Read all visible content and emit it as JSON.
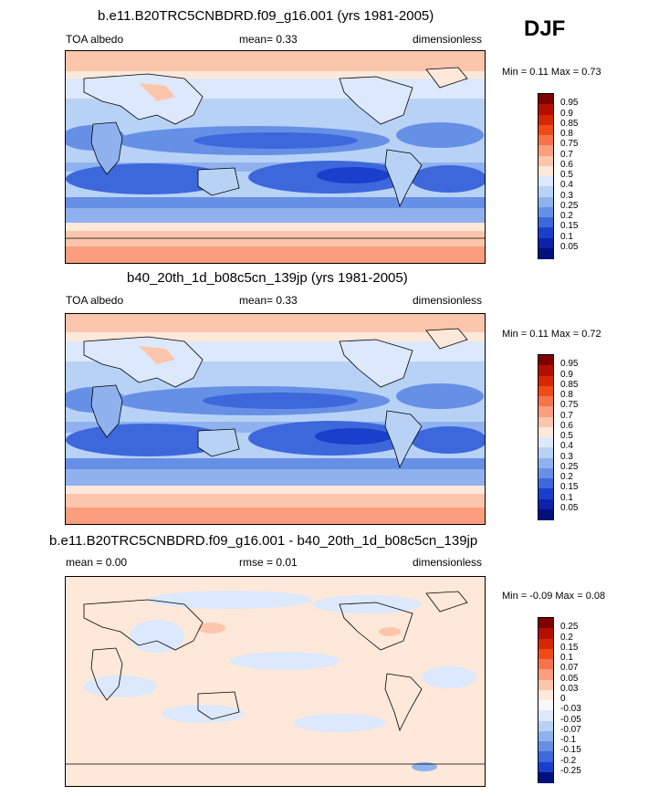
{
  "season": "DJF",
  "panels": [
    {
      "title": "b.e11.B20TRC5CNBDRD.f09_g16.001 (yrs 1981-2005)",
      "left": "TOA albedo",
      "center": "mean=  0.33",
      "right": "dimensionless",
      "minmax": "Min =   0.11 Max =   0.73",
      "colorbar_labels": [
        "0.95",
        "0.9",
        "0.85",
        "0.8",
        "0.75",
        "0.7",
        "0.6",
        "0.5",
        "0.4",
        "0.3",
        "0.25",
        "0.2",
        "0.15",
        "0.1",
        "0.05"
      ]
    },
    {
      "title": "b40_20th_1d_b08c5cn_139jp (yrs 1981-2005)",
      "left": "TOA albedo",
      "center": "mean=  0.33",
      "right": "dimensionless",
      "minmax": "Min =   0.11 Max =   0.72",
      "colorbar_labels": [
        "0.95",
        "0.9",
        "0.85",
        "0.8",
        "0.75",
        "0.7",
        "0.6",
        "0.5",
        "0.4",
        "0.3",
        "0.25",
        "0.2",
        "0.15",
        "0.1",
        "0.05"
      ]
    },
    {
      "title": "b.e11.B20TRC5CNBDRD.f09_g16.001 - b40_20th_1d_b08c5cn_139jp",
      "left": "mean =   0.00",
      "center": "rmse =   0.01",
      "right": "dimensionless",
      "minmax": "Min =  -0.09 Max =   0.08",
      "colorbar_labels": [
        "0.25",
        "0.2",
        "0.15",
        "0.1",
        "0.07",
        "0.05",
        "0.03",
        "0",
        "-0.03",
        "-0.05",
        "-0.07",
        "-0.1",
        "-0.15",
        "-0.2",
        "-0.25"
      ]
    }
  ],
  "colors": {
    "scale": [
      "#7f0000",
      "#b30f00",
      "#d62800",
      "#ee4b16",
      "#f7734a",
      "#fb9e7d",
      "#fcc6ac",
      "#fde8da",
      "#dce8fb",
      "#b8d2f6",
      "#8fb2ef",
      "#6690e6",
      "#3d68dc",
      "#1a3fcc",
      "#0d22a8",
      "#00127a"
    ],
    "diff_scale": [
      "#7f0000",
      "#b30f00",
      "#d62800",
      "#ee4b16",
      "#f7734a",
      "#fb9e7d",
      "#fcc6ac",
      "#fde8da",
      "#f8f8fa",
      "#dce8fb",
      "#b8d2f6",
      "#8fb2ef",
      "#6690e6",
      "#3d68dc",
      "#1a3fcc",
      "#00127a"
    ]
  }
}
